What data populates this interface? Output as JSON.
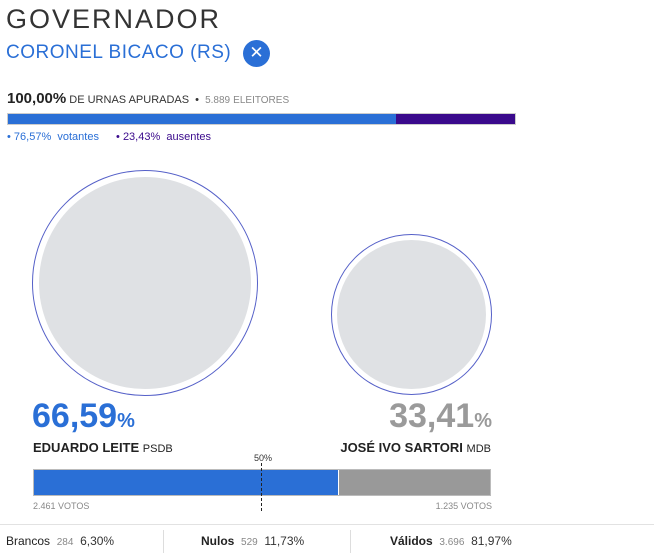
{
  "header": {
    "title": "GOVERNADOR",
    "location": "CORONEL BICACO (RS)"
  },
  "turnout": {
    "counted_pct": "100,00%",
    "counted_label": "DE URNAS APURADAS",
    "voters": "5.889",
    "voters_label": "ELEITORES",
    "voting_pct": "76,57%",
    "voting_label": "votantes",
    "absent_pct": "23,43%",
    "absent_label": "ausentes"
  },
  "candidates": [
    {
      "pct": "66,59",
      "pct_unit": "%",
      "name": "EDUARDO LEITE",
      "party": "PSDB",
      "votes": "2.461 VOTOS"
    },
    {
      "pct": "33,41",
      "pct_unit": "%",
      "name": "JOSÉ IVO SARTORI",
      "party": "MDB",
      "votes": "1.235 VOTOS"
    }
  ],
  "midpoint": "50%",
  "summary": [
    {
      "label": "Brancos",
      "count": "284",
      "pct": "6,30%"
    },
    {
      "label": "Nulos",
      "count": "529",
      "pct": "11,73%"
    },
    {
      "label": "Válidos",
      "count": "3.696",
      "pct": "81,97%"
    }
  ]
}
